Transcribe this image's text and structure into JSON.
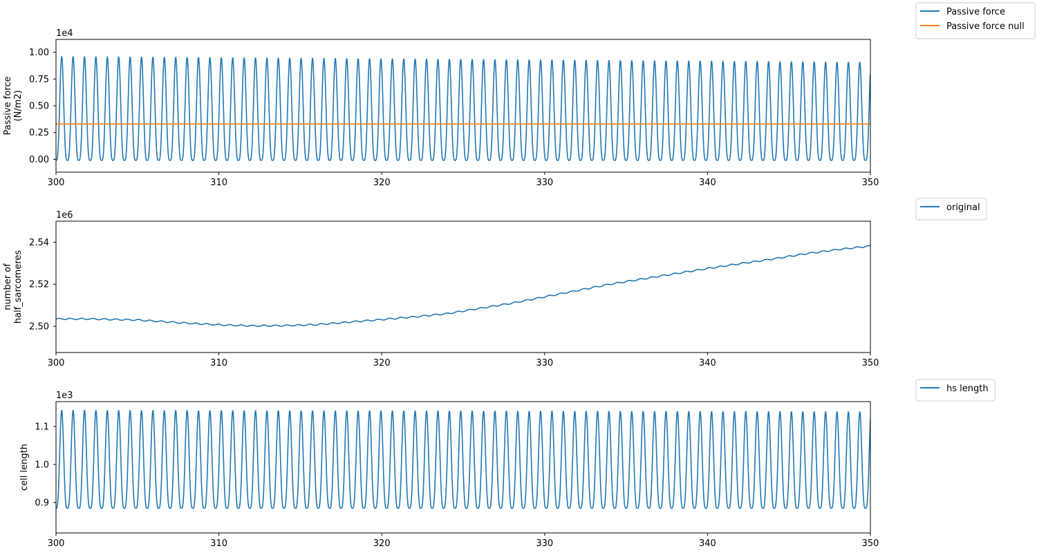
{
  "chart_data": [
    {
      "type": "line",
      "xlim": [
        300,
        350
      ],
      "ylim": [
        -0.12,
        1.12
      ],
      "y_offset_label": "1e4",
      "ylabel_lines": [
        "Passive force",
        "(N/m2)"
      ],
      "xticks": [
        300,
        310,
        320,
        330,
        340,
        350
      ],
      "xtick_labels": [
        "300",
        "310",
        "320",
        "330",
        "340",
        "350"
      ],
      "yticks": [
        0.0,
        0.25,
        0.5,
        0.75,
        1.0
      ],
      "ytick_labels": [
        "0.00",
        "0.25",
        "0.50",
        "0.75",
        "1.00"
      ],
      "legend": "outside-top-right",
      "grid": false,
      "series": [
        {
          "name": "Passive force",
          "color": "#1f77b4",
          "kind": "periodic",
          "x_start": 300,
          "x_end": 350,
          "period": 0.7,
          "min_start": -0.01,
          "max_start": 0.96,
          "min_end": -0.01,
          "max_end": 0.905,
          "final_value": 0.73
        },
        {
          "name": "Passive force null",
          "color": "#ff7f0e",
          "kind": "constant",
          "value": 0.33
        }
      ]
    },
    {
      "type": "line",
      "xlim": [
        300,
        350
      ],
      "ylim": [
        2.4875,
        2.55
      ],
      "y_offset_label": "1e6",
      "ylabel_lines": [
        "number of",
        "half_sarcomeres"
      ],
      "xticks": [
        300,
        310,
        320,
        330,
        340,
        350
      ],
      "xtick_labels": [
        "300",
        "310",
        "320",
        "330",
        "340",
        "350"
      ],
      "yticks": [
        2.5,
        2.52,
        2.54
      ],
      "ytick_labels": [
        "2.50",
        "2.52",
        "2.54"
      ],
      "legend": "outside-top-right",
      "grid": false,
      "series": [
        {
          "name": "original",
          "color": "#1f77b4",
          "kind": "trend",
          "period": 0.7,
          "ripple": 0.0003,
          "points": [
            [
              300,
              2.5035
            ],
            [
              302,
              2.5035
            ],
            [
              305,
              2.503
            ],
            [
              308,
              2.5015
            ],
            [
              310,
              2.5007
            ],
            [
              312,
              2.5002
            ],
            [
              314,
              2.5003
            ],
            [
              316,
              2.5008
            ],
            [
              318,
              2.502
            ],
            [
              320,
              2.5032
            ],
            [
              322,
              2.5045
            ],
            [
              324,
              2.506
            ],
            [
              326,
              2.5085
            ],
            [
              328,
              2.511
            ],
            [
              330,
              2.514
            ],
            [
              332,
              2.517
            ],
            [
              334,
              2.52
            ],
            [
              336,
              2.5225
            ],
            [
              338,
              2.525
            ],
            [
              340,
              2.5275
            ],
            [
              342,
              2.5298
            ],
            [
              344,
              2.532
            ],
            [
              346,
              2.5345
            ],
            [
              348,
              2.5365
            ],
            [
              350,
              2.5382
            ]
          ]
        }
      ]
    },
    {
      "type": "line",
      "xlim": [
        300,
        350
      ],
      "ylim": [
        0.82,
        1.165
      ],
      "y_offset_label": "1e3",
      "ylabel_lines": [
        "cell length"
      ],
      "xticks": [
        300,
        310,
        320,
        330,
        340,
        350
      ],
      "xtick_labels": [
        "300",
        "310",
        "320",
        "330",
        "340",
        "350"
      ],
      "yticks": [
        0.9,
        1.0,
        1.1
      ],
      "ytick_labels": [
        "0.9",
        "1.0",
        "1.1"
      ],
      "legend": "outside-top-right",
      "grid": false,
      "series": [
        {
          "name": "hs length",
          "color": "#1f77b4",
          "kind": "periodic",
          "x_start": 300,
          "x_end": 350,
          "period": 0.7,
          "min_start": 0.885,
          "max_start": 1.142,
          "min_end": 0.885,
          "max_end": 1.138,
          "final_value": 1.12
        }
      ]
    }
  ]
}
